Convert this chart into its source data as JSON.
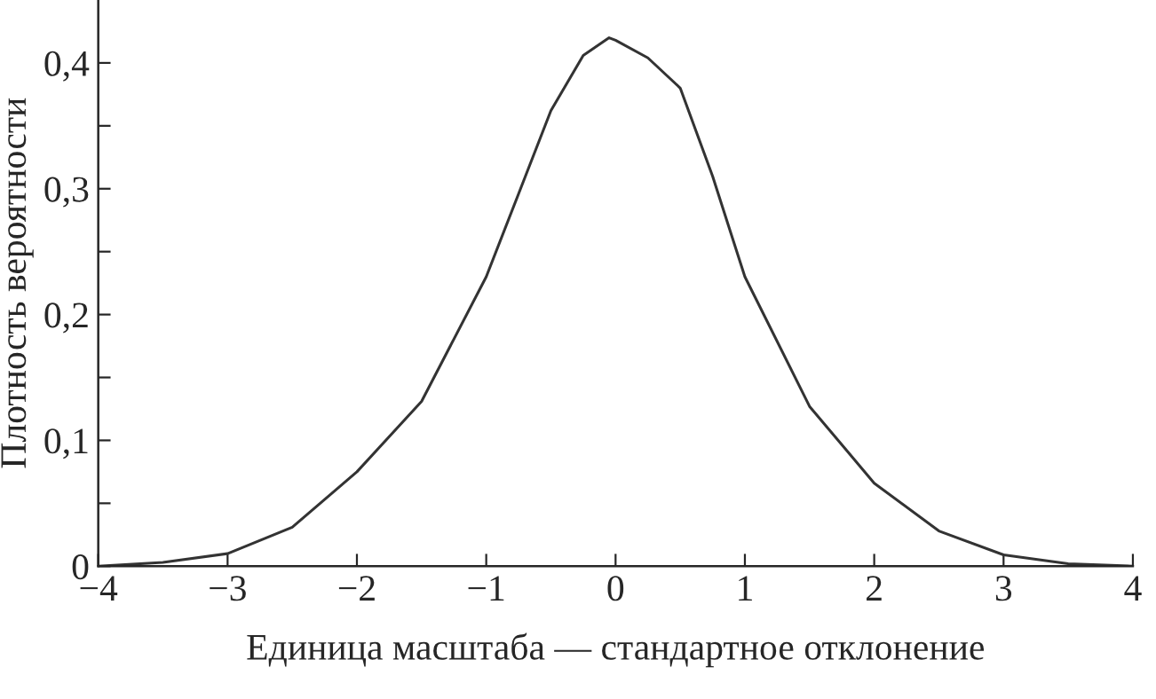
{
  "chart_data": {
    "type": "line",
    "xlabel": "Единица масштаба — стандартное отклонение",
    "ylabel": "Плотность вероятности",
    "x": [
      -4,
      -3.5,
      -3,
      -2.5,
      -2,
      -1.5,
      -1,
      -0.75,
      -0.5,
      -0.25,
      -0.05,
      0,
      0.25,
      0.5,
      0.75,
      1,
      1.5,
      2,
      2.5,
      3,
      3.5,
      4
    ],
    "series": [
      {
        "color": "#333333",
        "values": [
          0,
          0.003,
          0.01,
          0.031,
          0.075,
          0.131,
          0.23,
          0.296,
          0.362,
          0.406,
          0.42,
          0.418,
          0.404,
          0.38,
          0.31,
          0.23,
          0.127,
          0.066,
          0.028,
          0.009,
          0.002,
          0
        ]
      }
    ],
    "xlim": [
      -4,
      4
    ],
    "ylim": [
      0,
      0.45
    ],
    "xticks": [
      {
        "value": -4,
        "label": "−4"
      },
      {
        "value": -3,
        "label": "−3"
      },
      {
        "value": -2,
        "label": "−2"
      },
      {
        "value": -1,
        "label": "−1"
      },
      0,
      1,
      2,
      3,
      4
    ],
    "yticks": [
      0,
      {
        "value": 0.05,
        "label": null
      },
      {
        "value": 0.1,
        "label": "0,1"
      },
      {
        "value": 0.15,
        "label": null
      },
      {
        "value": 0.2,
        "label": "0,2"
      },
      {
        "value": 0.25,
        "label": null
      },
      {
        "value": 0.3,
        "label": "0,3"
      },
      {
        "value": 0.35,
        "label": null
      },
      {
        "value": 0.4,
        "label": "0,4"
      }
    ],
    "grid": false,
    "legend": false,
    "marker": "none",
    "line_style": "solid"
  }
}
